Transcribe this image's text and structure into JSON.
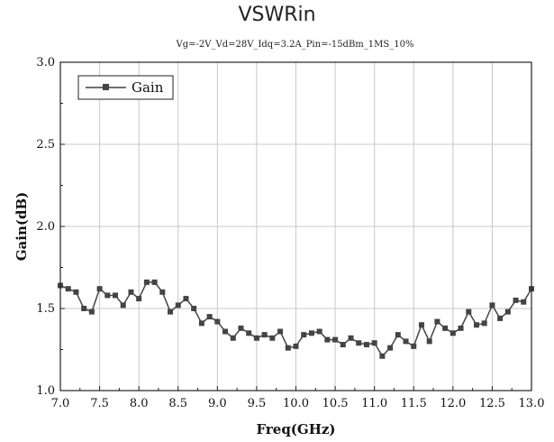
{
  "chart_data": {
    "type": "line",
    "title": "VSWRin",
    "subtitle": "Vg=-2V_Vd=28V_Idq=3.2A_Pin=-15dBm_1MS_10%",
    "xlabel": "Freq(GHz)",
    "ylabel": "Gain(dB)",
    "xlim": [
      7.0,
      13.0
    ],
    "ylim": [
      1.0,
      3.0
    ],
    "xticks": [
      "7.0",
      "7.5",
      "8.0",
      "8.5",
      "9.0",
      "9.5",
      "10.0",
      "10.5",
      "11.0",
      "11.5",
      "12.0",
      "12.5",
      "13.0"
    ],
    "yticks": [
      "1.0",
      "1.5",
      "2.0",
      "2.5",
      "3.0"
    ],
    "grid": true,
    "legend_position": "top-left",
    "line_color": "#444444",
    "series": [
      {
        "name": "Gain",
        "x": [
          7.0,
          7.1,
          7.2,
          7.3,
          7.4,
          7.5,
          7.6,
          7.7,
          7.8,
          7.9,
          8.0,
          8.1,
          8.2,
          8.3,
          8.4,
          8.5,
          8.6,
          8.7,
          8.8,
          8.9,
          9.0,
          9.1,
          9.2,
          9.3,
          9.4,
          9.5,
          9.6,
          9.7,
          9.8,
          9.9,
          10.0,
          10.1,
          10.2,
          10.3,
          10.4,
          10.5,
          10.6,
          10.7,
          10.8,
          10.9,
          11.0,
          11.1,
          11.2,
          11.3,
          11.4,
          11.5,
          11.6,
          11.7,
          11.8,
          11.9,
          12.0,
          12.1,
          12.2,
          12.3,
          12.4,
          12.5,
          12.6,
          12.7,
          12.8,
          12.9,
          13.0
        ],
        "values": [
          1.64,
          1.62,
          1.6,
          1.5,
          1.48,
          1.62,
          1.58,
          1.58,
          1.52,
          1.6,
          1.56,
          1.66,
          1.66,
          1.6,
          1.48,
          1.52,
          1.56,
          1.5,
          1.41,
          1.45,
          1.42,
          1.36,
          1.32,
          1.38,
          1.35,
          1.32,
          1.34,
          1.32,
          1.36,
          1.26,
          1.27,
          1.34,
          1.35,
          1.36,
          1.31,
          1.31,
          1.28,
          1.32,
          1.29,
          1.28,
          1.29,
          1.21,
          1.26,
          1.34,
          1.3,
          1.27,
          1.4,
          1.3,
          1.42,
          1.38,
          1.35,
          1.38,
          1.48,
          1.4,
          1.41,
          1.52,
          1.44,
          1.48,
          1.55,
          1.54,
          1.62
        ]
      }
    ]
  }
}
